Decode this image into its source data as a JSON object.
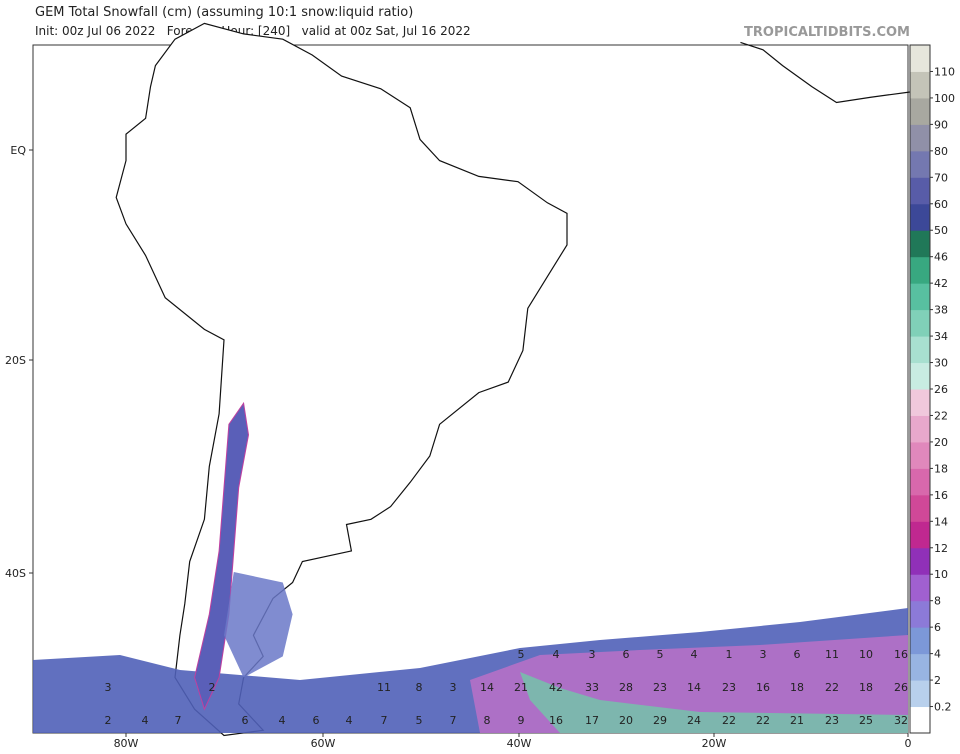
{
  "header": {
    "title": "GEM Total Snowfall (cm) (assuming 10:1 snow:liquid ratio)",
    "subtitle": "Init: 00z Jul 06 2022   Forecast Hour: [240]   valid at 00z Sat, Jul 16 2022",
    "credit": "TROPICALTIDBITS.COM"
  },
  "map": {
    "lat_labels": [
      "EQ",
      "20S",
      "40S"
    ],
    "lon_labels": [
      "80W",
      "60W",
      "40W",
      "20W",
      "0"
    ],
    "rows": [
      [
        "5",
        "4",
        "3",
        "6",
        "5",
        "4",
        "1",
        "3",
        "6",
        "11",
        "10",
        "16"
      ],
      [
        "3",
        "2",
        "11",
        "8",
        "3",
        "14",
        "21",
        "42",
        "33",
        "28",
        "23",
        "14",
        "23",
        "16",
        "18",
        "22",
        "18",
        "26"
      ],
      [
        "2",
        "4",
        "7",
        "6",
        "4",
        "6",
        "4",
        "7",
        "5",
        "7",
        "8",
        "9",
        "16",
        "17",
        "20",
        "29",
        "24",
        "22",
        "22",
        "21",
        "23",
        "25",
        "32"
      ]
    ]
  },
  "colorbar": {
    "labels": [
      "0.2",
      "2",
      "4",
      "6",
      "8",
      "10",
      "12",
      "14",
      "16",
      "18",
      "20",
      "22",
      "26",
      "30",
      "34",
      "38",
      "42",
      "46",
      "50",
      "60",
      "70",
      "80",
      "90",
      "100",
      "110"
    ]
  }
}
